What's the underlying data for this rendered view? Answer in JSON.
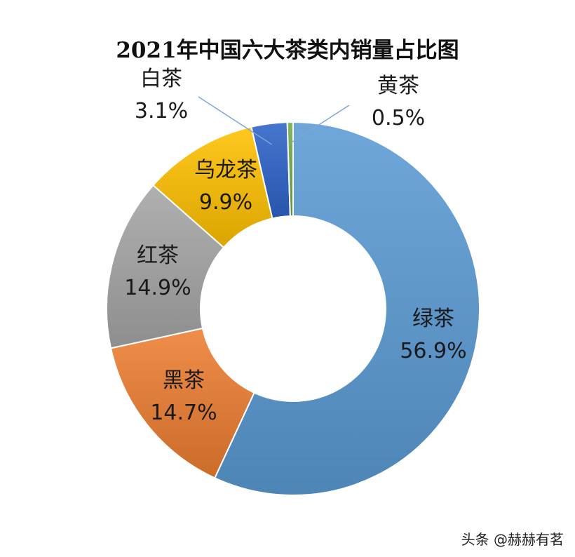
{
  "chart_data": {
    "type": "pie",
    "title": "2021年中国六大茶类内销量占比图",
    "slices": [
      {
        "name": "绿茶",
        "value": 56.9,
        "label": "56.9%",
        "color": "#5b9bd5"
      },
      {
        "name": "黑茶",
        "value": 14.7,
        "label": "14.7%",
        "color": "#ed7d31"
      },
      {
        "name": "红茶",
        "value": 14.9,
        "label": "14.9%",
        "color": "#a5a5a5"
      },
      {
        "name": "乌龙茶",
        "value": 9.9,
        "label": "9.9%",
        "color": "#ffc000"
      },
      {
        "name": "白茶",
        "value": 3.1,
        "label": "3.1%",
        "color": "#2e63c8"
      },
      {
        "name": "黄茶",
        "value": 0.5,
        "label": "0.5%",
        "color": "#70ad47"
      }
    ],
    "donut": true,
    "legend": "none"
  },
  "watermark": "头条 @赫赫有茗"
}
